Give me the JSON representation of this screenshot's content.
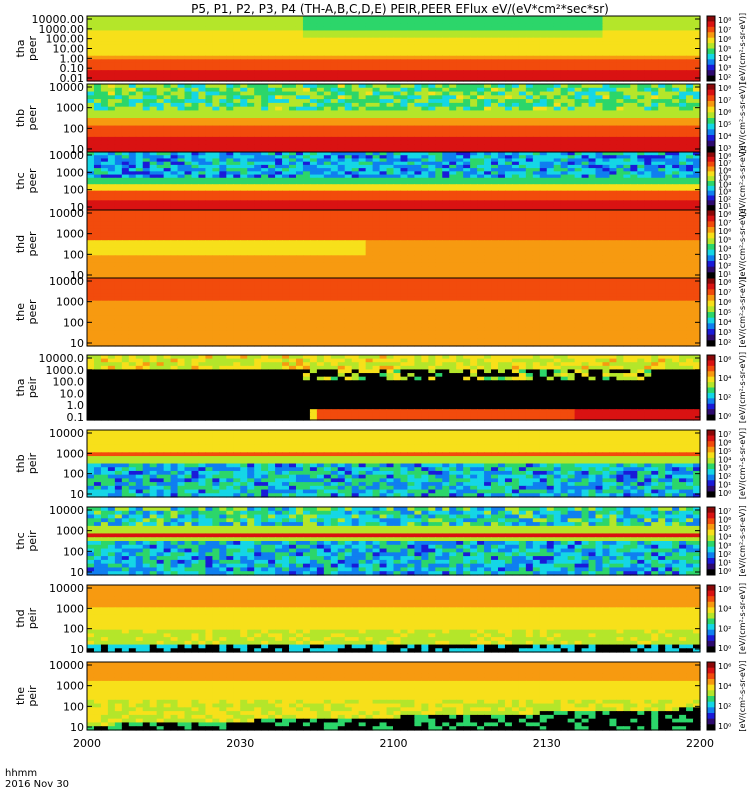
{
  "title": "P5, P1, P2, P3, P4 (TH-A,B,C,D,E) PEIR,PEER EFlux eV/(eV*cm²*sec*sr)",
  "footer": {
    "row1": "hhmm",
    "row2": "2016 Nov 30"
  },
  "colors": {
    "colormap": [
      "#000000",
      "#2e0a6e",
      "#1a1ad8",
      "#0f7ff0",
      "#15d6e6",
      "#2cd66a",
      "#b4e62a",
      "#f7e01a",
      "#f79a10",
      "#f24b0c",
      "#d91212",
      "#8a0808"
    ],
    "background": "#ffffff",
    "frame": "#000000"
  },
  "chart_data": {
    "type": "heatmap",
    "x_axis": {
      "ticks": [
        "2000",
        "2030",
        "2100",
        "2130",
        "2200"
      ],
      "range_hhmm": [
        "2000",
        "2200"
      ]
    },
    "panels": [
      {
        "probe": "tha",
        "species": "peer",
        "ylabel": "tha peer",
        "yscale": "log",
        "yticks": [
          "10000.00",
          "1000.00",
          "100.00",
          "10.00",
          "1.00",
          "0.10",
          "0.01"
        ],
        "cbar_ticks": [
          "10⁸",
          "10⁷",
          "10⁶",
          "10⁵",
          "10⁴",
          "10³",
          "10²"
        ],
        "cbar_label": "[eV/(cm²-s-sr-eV)]"
      },
      {
        "probe": "thb",
        "species": "peer",
        "ylabel": "thb peer",
        "yscale": "log",
        "yticks": [
          "10000",
          "1000",
          "100",
          "10"
        ],
        "cbar_ticks": [
          "10⁸",
          "10⁷",
          "10⁶",
          "10⁵",
          "10⁴",
          "10³"
        ],
        "cbar_label": "[eV/(cm²-s-sr-eV)]"
      },
      {
        "probe": "thc",
        "species": "peer",
        "ylabel": "thc peer",
        "yscale": "log",
        "yticks": [
          "10000",
          "1000",
          "100",
          "10"
        ],
        "cbar_ticks": [
          "10⁸",
          "10⁷",
          "10⁶",
          "10⁵",
          "10⁴",
          "10³",
          "10²",
          "10¹"
        ],
        "cbar_label": "[eV/(cm²-s-sr-eV)]"
      },
      {
        "probe": "thd",
        "species": "peer",
        "ylabel": "thd peer",
        "yscale": "log",
        "yticks": [
          "10000",
          "1000",
          "100",
          "10"
        ],
        "cbar_ticks": [
          "10⁸",
          "10⁷",
          "10⁶",
          "10⁵",
          "10⁴",
          "10³",
          "10²",
          "10¹"
        ],
        "cbar_label": "[eV/(cm²-s-sr-eV)]"
      },
      {
        "probe": "the",
        "species": "peer",
        "ylabel": "the peer",
        "yscale": "log",
        "yticks": [
          "10000",
          "1000",
          "100",
          "10"
        ],
        "cbar_ticks": [
          "10⁸",
          "10⁷",
          "10⁶",
          "10⁵",
          "10⁴",
          "10³",
          "10²"
        ],
        "cbar_label": "[eV/(cm²-s-sr-eV)]"
      },
      {
        "probe": "tha",
        "species": "peir",
        "ylabel": "tha peir",
        "yscale": "log",
        "yticks": [
          "10000.0",
          "1000.0",
          "100.0",
          "10.0",
          "1.0",
          "0.1"
        ],
        "cbar_ticks": [
          "10⁶",
          "10⁴",
          "10²",
          "10⁰"
        ],
        "cbar_label": "[eV/(cm²-s-sr-eV)]"
      },
      {
        "probe": "thb",
        "species": "peir",
        "ylabel": "thb peir",
        "yscale": "log",
        "yticks": [
          "10000",
          "1000",
          "100",
          "10"
        ],
        "cbar_ticks": [
          "10⁷",
          "10⁶",
          "10⁵",
          "10⁴",
          "10³",
          "10²",
          "10¹",
          "10⁰"
        ],
        "cbar_label": "[eV/(cm²-s-sr-eV)]"
      },
      {
        "probe": "thc",
        "species": "peir",
        "ylabel": "thc peir",
        "yscale": "log",
        "yticks": [
          "10000",
          "1000",
          "100",
          "10"
        ],
        "cbar_ticks": [
          "10⁷",
          "10⁶",
          "10⁵",
          "10⁴",
          "10³",
          "10²",
          "10¹",
          "10⁰"
        ],
        "cbar_label": "[eV/(cm²-s-sr-eV)]"
      },
      {
        "probe": "thd",
        "species": "peir",
        "ylabel": "thd peir",
        "yscale": "log",
        "yticks": [
          "10000",
          "1000",
          "100",
          "10"
        ],
        "cbar_ticks": [
          "10⁶",
          "10⁴",
          "10²",
          "10⁰"
        ],
        "cbar_label": "[eV/(cm²-s-sr-eV)]"
      },
      {
        "probe": "the",
        "species": "peir",
        "ylabel": "the peir",
        "yscale": "log",
        "yticks": [
          "10000",
          "1000",
          "100",
          "10"
        ],
        "cbar_ticks": [
          "10⁶",
          "10⁴",
          "10²",
          "10⁰"
        ],
        "cbar_label": "[eV/(cm²-s-sr-eV)]"
      }
    ]
  }
}
